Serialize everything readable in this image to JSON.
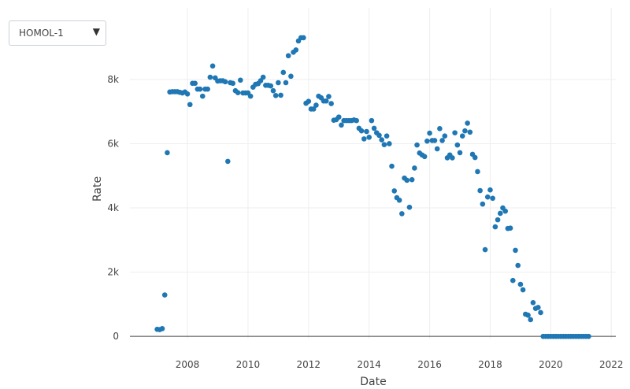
{
  "dropdown": {
    "selected": "HOMOL-1",
    "arrow_icon": "triangle-down-icon"
  },
  "chart_data": {
    "type": "scatter",
    "title": "",
    "xlabel": "Date",
    "ylabel": "Rate",
    "xlim": [
      2006.1,
      2022.15
    ],
    "ylim": [
      -70,
      10230
    ],
    "x_ticks": [
      "2008",
      "2010",
      "2012",
      "2014",
      "2016",
      "2018",
      "2020",
      "2022"
    ],
    "x_tick_values": [
      2008,
      2010,
      2012,
      2014,
      2016,
      2018,
      2020,
      2022
    ],
    "y_ticks": [
      "0",
      "2k",
      "4k",
      "6k",
      "8k"
    ],
    "y_tick_values": [
      0,
      2000,
      4000,
      6000,
      8000
    ],
    "grid": true,
    "marker_color": "#1f77b4",
    "series": [
      {
        "name": "HOMOL-1",
        "start": "2007-01",
        "frequency": "monthly",
        "values": [
          220,
          210,
          240,
          1290,
          5720,
          7610,
          7620,
          7620,
          7620,
          7600,
          7580,
          7610,
          7550,
          7220,
          7880,
          7880,
          7700,
          7700,
          7480,
          7700,
          7700,
          8070,
          8420,
          8050,
          7950,
          7960,
          7960,
          7930,
          5450,
          7900,
          7880,
          7650,
          7590,
          7980,
          7580,
          7580,
          7580,
          7480,
          7760,
          7850,
          7870,
          7960,
          8070,
          7820,
          7820,
          7800,
          7650,
          7500,
          7900,
          7510,
          8220,
          7900,
          8740,
          8100,
          8850,
          8920,
          9200,
          9300,
          9300,
          7260,
          7320,
          7080,
          7080,
          7200,
          7480,
          7430,
          7330,
          7330,
          7470,
          7250,
          6730,
          6750,
          6830,
          6580,
          6720,
          6720,
          6720,
          6720,
          6740,
          6720,
          6480,
          6400,
          6150,
          6380,
          6200,
          6720,
          6480,
          6340,
          6260,
          6120,
          5970,
          6240,
          6000,
          5300,
          4530,
          4320,
          4240,
          3820,
          4930,
          4860,
          4020,
          4880,
          5240,
          5960,
          5710,
          5650,
          5600,
          6080,
          6330,
          6100,
          6100,
          5840,
          6470,
          6100,
          6240,
          5560,
          5650,
          5560,
          6340,
          5960,
          5720,
          6240,
          6400,
          6640,
          6360,
          5670,
          5570,
          5130,
          4540,
          4120,
          2700,
          4340,
          4560,
          4300,
          3410,
          3630,
          3830,
          4000,
          3900,
          3360,
          3370,
          1740,
          2680,
          2210,
          1620,
          1450,
          690,
          660,
          520,
          1050,
          870,
          900,
          740,
          0,
          0,
          0,
          0,
          0,
          0,
          0,
          0,
          0,
          0,
          0,
          0,
          0,
          0,
          0,
          0,
          0,
          0,
          0
        ]
      }
    ]
  }
}
